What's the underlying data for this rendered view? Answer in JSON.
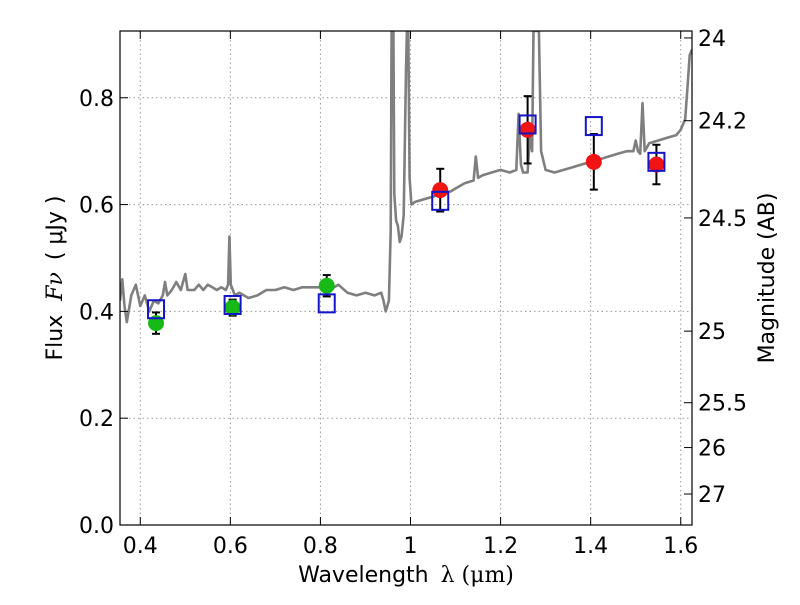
{
  "chart_data": {
    "type": "scatter",
    "title": "",
    "xlabel": "Wavelength",
    "xlabel_symbol": "λ (μm)",
    "ylabel": "Flux",
    "ylabel_symbol": "Fν",
    "ylabel_unit": "( μJy )",
    "right_ylabel": "Magnitude (AB)",
    "xlim": [
      0.355,
      1.625
    ],
    "ylim": [
      0.0,
      0.925
    ],
    "grid": true,
    "x_ticks": [
      0.4,
      0.6,
      0.8,
      1.0,
      1.2,
      1.4,
      1.6
    ],
    "x_tick_labels": [
      "0.4",
      "0.6",
      "0.8",
      "1",
      "1.2",
      "1.4",
      "1.6"
    ],
    "y_ticks": [
      0.0,
      0.2,
      0.4,
      0.6,
      0.8
    ],
    "y_tick_labels": [
      "0.0",
      "0.2",
      "0.4",
      "0.6",
      "0.8"
    ],
    "right_ticks": [
      {
        "flux": 0.912,
        "label": "24"
      },
      {
        "flux": 0.757,
        "label": "24.2"
      },
      {
        "flux": 0.575,
        "label": "24.5"
      },
      {
        "flux": 0.363,
        "label": "25"
      },
      {
        "flux": 0.229,
        "label": "25.5"
      },
      {
        "flux": 0.145,
        "label": "26"
      },
      {
        "flux": 0.058,
        "label": "27"
      }
    ],
    "colors": {
      "green": "#16b916",
      "red": "#f01414",
      "model_box": "#1414c8",
      "spectrum": "#7f7f7f",
      "errorbar": "#000000",
      "grid": "#9a9a9a"
    },
    "series": [
      {
        "name": "observed (green)",
        "color": "#16b916",
        "points": [
          {
            "x": 0.435,
            "y": 0.378,
            "err": 0.02
          },
          {
            "x": 0.605,
            "y": 0.407,
            "err": 0.015
          },
          {
            "x": 0.814,
            "y": 0.448,
            "err": 0.02
          }
        ]
      },
      {
        "name": "observed (red)",
        "color": "#f01414",
        "points": [
          {
            "x": 1.066,
            "y": 0.627,
            "err": 0.04
          },
          {
            "x": 1.26,
            "y": 0.74,
            "err": 0.063
          },
          {
            "x": 1.407,
            "y": 0.68,
            "err": 0.052
          },
          {
            "x": 1.546,
            "y": 0.675,
            "err": 0.037
          }
        ]
      },
      {
        "name": "model photometry",
        "color": "#1414c8",
        "points": [
          {
            "x": 0.435,
            "y": 0.404
          },
          {
            "x": 0.605,
            "y": 0.412
          },
          {
            "x": 0.814,
            "y": 0.415
          },
          {
            "x": 1.066,
            "y": 0.607
          },
          {
            "x": 1.26,
            "y": 0.75
          },
          {
            "x": 1.407,
            "y": 0.747
          },
          {
            "x": 1.546,
            "y": 0.68
          }
        ]
      },
      {
        "name": "model spectrum",
        "color": "#7f7f7f",
        "line": [
          [
            0.355,
            0.42
          ],
          [
            0.36,
            0.46
          ],
          [
            0.365,
            0.41
          ],
          [
            0.37,
            0.38
          ],
          [
            0.38,
            0.43
          ],
          [
            0.39,
            0.45
          ],
          [
            0.4,
            0.41
          ],
          [
            0.41,
            0.43
          ],
          [
            0.42,
            0.4
          ],
          [
            0.43,
            0.42
          ],
          [
            0.44,
            0.415
          ],
          [
            0.45,
            0.43
          ],
          [
            0.455,
            0.455
          ],
          [
            0.46,
            0.43
          ],
          [
            0.47,
            0.44
          ],
          [
            0.48,
            0.455
          ],
          [
            0.49,
            0.44
          ],
          [
            0.5,
            0.47
          ],
          [
            0.505,
            0.44
          ],
          [
            0.52,
            0.44
          ],
          [
            0.53,
            0.45
          ],
          [
            0.54,
            0.44
          ],
          [
            0.55,
            0.45
          ],
          [
            0.56,
            0.445
          ],
          [
            0.57,
            0.44
          ],
          [
            0.58,
            0.445
          ],
          [
            0.59,
            0.44
          ],
          [
            0.595,
            0.45
          ],
          [
            0.598,
            0.54
          ],
          [
            0.601,
            0.45
          ],
          [
            0.61,
            0.43
          ],
          [
            0.62,
            0.435
          ],
          [
            0.64,
            0.425
          ],
          [
            0.66,
            0.43
          ],
          [
            0.68,
            0.44
          ],
          [
            0.7,
            0.44
          ],
          [
            0.72,
            0.445
          ],
          [
            0.74,
            0.44
          ],
          [
            0.76,
            0.445
          ],
          [
            0.78,
            0.445
          ],
          [
            0.8,
            0.445
          ],
          [
            0.82,
            0.44
          ],
          [
            0.84,
            0.45
          ],
          [
            0.86,
            0.435
          ],
          [
            0.88,
            0.43
          ],
          [
            0.9,
            0.435
          ],
          [
            0.92,
            0.43
          ],
          [
            0.935,
            0.435
          ],
          [
            0.94,
            0.42
          ],
          [
            0.945,
            0.4
          ],
          [
            0.952,
            0.42
          ],
          [
            0.956,
            0.55
          ],
          [
            0.958,
            0.925
          ],
          [
            0.962,
            0.925
          ],
          [
            0.964,
            0.62
          ],
          [
            0.968,
            0.57
          ],
          [
            0.972,
            0.56
          ],
          [
            0.976,
            0.53
          ],
          [
            0.98,
            0.54
          ],
          [
            0.985,
            0.58
          ],
          [
            0.99,
            0.85
          ],
          [
            0.992,
            0.925
          ],
          [
            0.995,
            0.925
          ],
          [
            0.998,
            0.65
          ],
          [
            1.002,
            0.6
          ],
          [
            1.01,
            0.605
          ],
          [
            1.03,
            0.61
          ],
          [
            1.05,
            0.615
          ],
          [
            1.07,
            0.62
          ],
          [
            1.09,
            0.625
          ],
          [
            1.1,
            0.63
          ],
          [
            1.12,
            0.64
          ],
          [
            1.14,
            0.645
          ],
          [
            1.145,
            0.69
          ],
          [
            1.15,
            0.65
          ],
          [
            1.16,
            0.655
          ],
          [
            1.18,
            0.66
          ],
          [
            1.2,
            0.665
          ],
          [
            1.22,
            0.66
          ],
          [
            1.235,
            0.665
          ],
          [
            1.24,
            0.77
          ],
          [
            1.245,
            0.675
          ],
          [
            1.25,
            0.66
          ],
          [
            1.26,
            0.66
          ],
          [
            1.265,
            0.73
          ],
          [
            1.27,
            0.7
          ],
          [
            1.273,
            0.925
          ],
          [
            1.285,
            0.925
          ],
          [
            1.29,
            0.7
          ],
          [
            1.3,
            0.665
          ],
          [
            1.32,
            0.66
          ],
          [
            1.34,
            0.665
          ],
          [
            1.36,
            0.67
          ],
          [
            1.38,
            0.675
          ],
          [
            1.4,
            0.68
          ],
          [
            1.42,
            0.685
          ],
          [
            1.44,
            0.69
          ],
          [
            1.46,
            0.695
          ],
          [
            1.48,
            0.7
          ],
          [
            1.495,
            0.7
          ],
          [
            1.5,
            0.72
          ],
          [
            1.505,
            0.7
          ],
          [
            1.51,
            0.695
          ],
          [
            1.515,
            0.79
          ],
          [
            1.52,
            0.7
          ],
          [
            1.53,
            0.715
          ],
          [
            1.55,
            0.72
          ],
          [
            1.57,
            0.725
          ],
          [
            1.59,
            0.73
          ],
          [
            1.6,
            0.74
          ],
          [
            1.61,
            0.76
          ],
          [
            1.615,
            0.82
          ],
          [
            1.62,
            0.88
          ],
          [
            1.625,
            0.89
          ]
        ]
      }
    ]
  }
}
